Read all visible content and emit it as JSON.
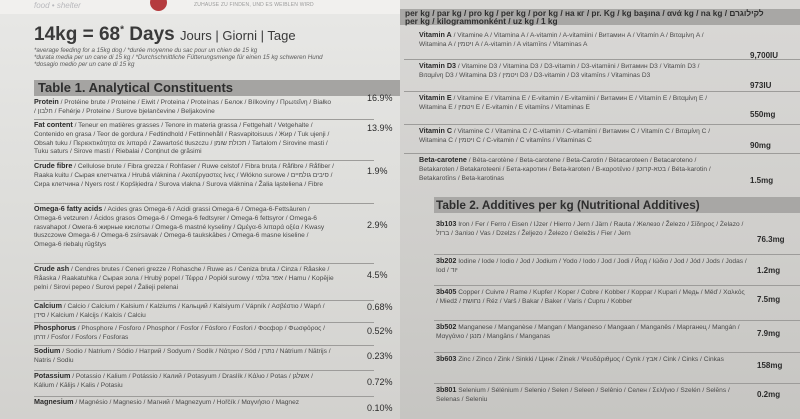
{
  "header": {
    "brand": "food • shelter",
    "note": "ZUHAUSE ZU FINDEN, UND ES WEIBLEN WIRD"
  },
  "feeding": {
    "headline": "14kg = 68",
    "superscript": "*",
    "days_word": "Days",
    "days_translations": "Jours | Giorni | Tage",
    "notes": [
      "*average feeding for a 15kg dog / *durée moyenne du sac pour un chien de 15 kg",
      "*durata media per un cane di 15 kg / *Durchschnittliche Fütterungsmenge für einen 15 kg schweren Hund",
      "*dosagio medio per un cane di 15 kg"
    ]
  },
  "table1": {
    "title": "Table 1. Analytical Constituents",
    "rows": [
      {
        "label": "Protein",
        "text": " / Protéine brute / Proteine / Eiwit / Proteina / Proteínas / Белок / Bílkoviny / Πρωτεΐνη / Białko / חלבון / Fehérje / Proteine / Surove bjelančevine / Beljakovine",
        "value": "16.9%"
      },
      {
        "label": "Fat content",
        "text": " / Teneur en matières grasses / Tenore in materia grassa / Fettgehalt / Vetgehalte / Contenido en grasa / Teor de gordura / Fedtindhold / Fettinnehåll / Rasvapitoisuus / Жир / Tuk ujenji / Obsah tuku / Περιεκτικότητα σε λιπαρά / Zawartość tłuszczu / תכולת שומן / Tartalom / Sirovine masti / Tuku saturs / Sirove masti / Riebalai / Conținut de grăsimi",
        "value": "13.9%"
      },
      {
        "label": "Crude fibre",
        "text": " / Cellulose brute / Fibra grezza / Rohfaser / Ruwe celstof / Fibra bruta / Råfibre / Råfiber / Raaka kuitu / Сырая клетчатка / Hrubá vláknina / Ακατέργαστες ίνες / Włókno surowe / סיבים גולמיים / Сира клетчина / Nyers rost / Kopšķiedra / Surova vlakna / Surova vláknina / Žalia ląsteliena / Fibre",
        "value": "1.9%"
      },
      {
        "label": "Omega-6 fatty acids",
        "text": " / Acides gras Omega-6 / Acidi grassi Omega-6 / Omega-6-Fettsäuren / Omega-6 vetzuren / Ácidos grasos Omega-6 / Omega-6 fedtsyrer / Omega-6 fettsyror / Omega-6 rasvahapot / Омега-6 жирные кислоты / Omega-6 mastné kyseliny / Ωμέγα-6 λιπαρά οξέα / Kwasy tłuszczowe Omega-6 / Omega-6 zsírsavak / Omega-6 taukskābes / Omega-6 masne kiseline / Omega-6 riebalų rūgštys",
        "value": "2.9%"
      },
      {
        "label": "Crude ash",
        "text": " / Cendres brutes / Ceneri grezze / Rohasche / Ruwe as / Ceniza bruta / Cinza / Råaske / Råaska / Raakatuhka / Сырая зола / Hrubý popel / Τέφρα / Popiół surowy / אפר גולמי / Hamu / Kopējie pelni / Sirovi pepeo / Surovi pepel / Žalieji pelenai",
        "value": "4.5%"
      },
      {
        "label": "Calcium",
        "text": " / Calcio / Calcium / Kalsium / Kalziums / Кальций / Kalsiyum / Vápník / Ασβέστιο / Wapń / סידן / Kalcium / Kalcijs / Kalcis / Calciu",
        "value": "0.68%"
      },
      {
        "label": "Phosphorus",
        "text": " / Phosphore / Fosforo / Phosphor / Fosfor / Fósforo / Fosfori / Фосфор / Φωσφόρος / זרחן / Fosfor / Fosfors / Fosforas",
        "value": "0.52%"
      },
      {
        "label": "Sodium",
        "text": " / Sodio / Natrium / Sódio / Натрий / Sodyum / Sodík / Νάτριο / Sód / נתרן / Nátrium / Nātrijs / Natris / Sodiu",
        "value": "0.23%"
      },
      {
        "label": "Potassium",
        "text": " / Potassio / Kalium / Potássio / Калий / Potasyum / Draslík / Κάλιο / Potas / אשלגן / Kálium / Kālijs / Kalis / Potasiu",
        "value": "0.72%"
      },
      {
        "label": "Magnesium",
        "text": " / Magnésio / Magnesio / Магний / Magnezyum / Hořčík / Μαγνήσιο / Magnez",
        "value": "0.10%"
      }
    ]
  },
  "per_kg_header": {
    "line1": "per kg / par kg / pro kg / per kg / por kg / на кг / pr. Kg / kg başına / ανά kg / na kg / לקילוגרם",
    "line2": "per kg / kilogrammonként / uz kg / 1 kg"
  },
  "vitamins": {
    "rows": [
      {
        "label": "Vitamin A",
        "text": " / Vitamine A / Vitamina A / A-vitamin / A-vitamiini / Витамин A / Vitamín A / Βιταμίνη A / Witamina A / ויטמין A / A-vitamin / A vitamīns / Vitaminas A",
        "value": "9,700IU"
      },
      {
        "label": "Vitamin D3",
        "text": " / Vitamine D3 / Vitamina D3 / D3-vitamin / D3-vitamiini / Витамин D3 / Vitamín D3 / Βιταμίνη D3 / Witamina D3 / ויטמין D3 / D3-vitamin / D3 vitamīns / Vitaminas D3",
        "value": "973IU"
      },
      {
        "label": "Vitamin E",
        "text": " / Vitamine E / Vitamina E / E-vitamin / E-vitamiini / Витамин E / Vitamín E / Βιταμίνη E / Witamina E / ויטמין E / E-vitamin / E vitamīns / Vitaminas E",
        "value": "550mg"
      },
      {
        "label": "Vitamin C",
        "text": " / Vitamine C / Vitamina C / C-vitamin / C-vitamiini / Витамин C / Vitamín C / Βιταμίνη C / Witamina C / ויטמין C / C-vitamin / C vitamīns / Vitaminas C",
        "value": "90mg"
      },
      {
        "label": "Beta-carotene",
        "text": " / Bêta-carotène / Beta-carotene / Beta-Carotin / Bètacaroteen / Betacaroteno / Betakaroten / Betakaroteeni / Бета-каротин / Beta-karoten / Β-καροτένιο / בטא-קרוטן / Béta-karotin / Betakarotīns / Beta-karotinas",
        "value": "1.5mg"
      }
    ]
  },
  "table2": {
    "title": "Table 2. Additives per kg (Nutritional Additives)",
    "rows": [
      {
        "label": "3b103",
        "text": " Iron / Fer / Ferro / Eisen / IJzer / Hierro / Jern / Järn / Rauta / Железо / Železo / Σίδηρος / Żelazo / ברזל / Залізо / Vas / Dzelzs / Željezo / Železo / Geležis / Fier / Jern",
        "value": "76.3mg"
      },
      {
        "label": "3b202",
        "text": " Iodine / Iode / Iodio / Jod / Jodium / Yodo / Iodo / Jod / Jodi / Йод / Ιώδιο / Jod / Jód / Jods / Jodas / Iod / יוד",
        "value": "1.2mg"
      },
      {
        "label": "3b405",
        "text": " Copper / Cuivre / Rame / Kupfer / Koper / Cobre / Kobber / Koppar / Kupari / Медь / Měď / Χαλκός / Miedź / נחושת / Réz / Varš / Bakar / Baker / Varis / Cupru / Kobber",
        "value": "7.5mg"
      },
      {
        "label": "3b502",
        "text": " Manganese / Manganèse / Mangan / Manganeso / Mangaan / Manganês / Марганец / Mangán / Μαγγάνιο / מנגן / Mangāns / Manganas",
        "value": "7.9mg"
      },
      {
        "label": "3b603",
        "text": " Zinc / Zinco / Zink / Sinkki / Цинк / Zinek / Ψευδάριθμος / Cynk / אבץ / Cink / Cinks / Cinkas",
        "value": "158mg"
      },
      {
        "label": "3b801",
        "text": " Selenium / Sélénium / Selenio / Selen / Seleen / Selênio / Селен / Σελήνιο / Szelén / Selēns / Selenas / Seleniu",
        "value": "0.2mg"
      }
    ]
  }
}
